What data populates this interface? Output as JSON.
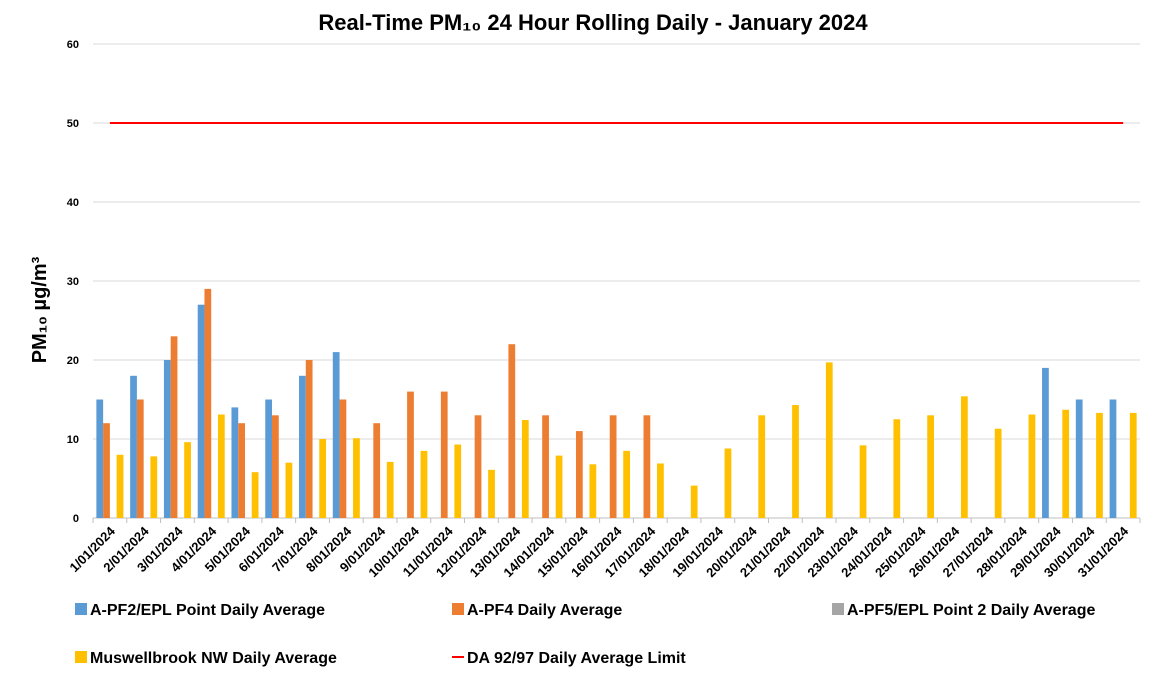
{
  "chart_data": {
    "type": "bar",
    "title": "Real-Time PM₁₀ 24 Hour Rolling Daily - January 2024",
    "y_label": "PM₁₀ µg/m³",
    "categories": [
      "1/01/2024",
      "2/01/2024",
      "3/01/2024",
      "4/01/2024",
      "5/01/2024",
      "6/01/2024",
      "7/01/2024",
      "8/01/2024",
      "9/01/2024",
      "10/01/2024",
      "11/01/2024",
      "12/01/2024",
      "13/01/2024",
      "14/01/2024",
      "15/01/2024",
      "16/01/2024",
      "17/01/2024",
      "18/01/2024",
      "19/01/2024",
      "20/01/2024",
      "21/01/2024",
      "22/01/2024",
      "23/01/2024",
      "24/01/2024",
      "25/01/2024",
      "26/01/2024",
      "27/01/2024",
      "28/01/2024",
      "29/01/2024",
      "30/01/2024",
      "31/01/2024"
    ],
    "series": [
      {
        "name": "A-PF2/EPL Point Daily Average",
        "color": "#5b9bd5",
        "type": "bar",
        "values": [
          15,
          18,
          20,
          27,
          14,
          15,
          18,
          21,
          null,
          null,
          null,
          null,
          null,
          null,
          null,
          null,
          null,
          null,
          null,
          null,
          null,
          null,
          null,
          null,
          null,
          null,
          null,
          null,
          19,
          15,
          15
        ]
      },
      {
        "name": "A-PF4 Daily Average",
        "color": "#ed7d31",
        "type": "bar",
        "values": [
          12,
          15,
          23,
          29,
          12,
          13,
          20,
          15,
          12,
          16,
          16,
          13,
          22,
          13,
          11,
          13,
          13,
          null,
          null,
          null,
          null,
          null,
          null,
          null,
          null,
          null,
          null,
          null,
          null,
          null,
          null
        ]
      },
      {
        "name": "A-PF5/EPL Point 2 Daily Average",
        "color": "#a5a5a5",
        "type": "bar",
        "values": [
          null,
          null,
          null,
          null,
          null,
          null,
          null,
          null,
          null,
          null,
          null,
          null,
          null,
          null,
          null,
          null,
          null,
          null,
          null,
          null,
          null,
          null,
          null,
          null,
          null,
          null,
          null,
          null,
          null,
          null,
          null
        ]
      },
      {
        "name": "Muswellbrook NW Daily Average",
        "color": "#ffc000",
        "type": "bar",
        "values": [
          8,
          7.8,
          9.6,
          13.1,
          5.8,
          7,
          10,
          10.1,
          7.1,
          8.5,
          9.3,
          6.1,
          12.4,
          7.9,
          6.8,
          8.5,
          6.9,
          4.1,
          8.8,
          13,
          14.3,
          19.7,
          9.2,
          12.5,
          13,
          15.4,
          11.3,
          13.1,
          13.7,
          13.3,
          13.3
        ]
      },
      {
        "name": "DA 92/97 Daily Average Limit",
        "color": "#ff0000",
        "type": "line",
        "values": [
          50,
          50,
          50,
          50,
          50,
          50,
          50,
          50,
          50,
          50,
          50,
          50,
          50,
          50,
          50,
          50,
          50,
          50,
          50,
          50,
          50,
          50,
          50,
          50,
          50,
          50,
          50,
          50,
          50,
          50,
          50
        ]
      }
    ],
    "ylim": [
      0,
      60
    ],
    "yticks": [
      0,
      10,
      20,
      30,
      40,
      50,
      60
    ],
    "grid": true
  }
}
